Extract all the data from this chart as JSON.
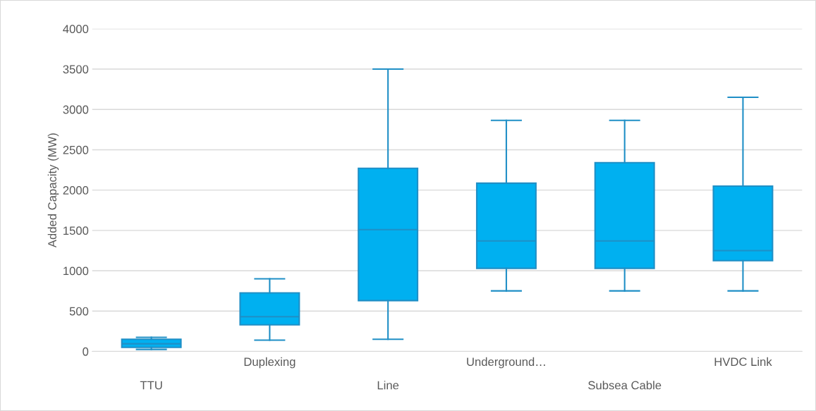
{
  "chart_data": {
    "type": "box",
    "ylabel": "Added Capacity (MW)",
    "categories": [
      "TTU",
      "Duplexing",
      "Line",
      "Underground…",
      "Subsea Cable",
      "HVDC Link"
    ],
    "color": "#00b0f0",
    "ylim": [
      0,
      4000
    ],
    "yticks": [
      0,
      500,
      1000,
      1500,
      2000,
      2500,
      3000,
      3500,
      4000
    ],
    "grid": "y",
    "boxes": [
      {
        "low": 25,
        "q1": 50,
        "median": 95,
        "q3": 150,
        "high": 175
      },
      {
        "low": 140,
        "q1": 330,
        "median": 430,
        "q3": 725,
        "high": 900
      },
      {
        "low": 150,
        "q1": 630,
        "median": 1510,
        "q3": 2270,
        "high": 3500
      },
      {
        "low": 750,
        "q1": 1030,
        "median": 1370,
        "q3": 2085,
        "high": 2865
      },
      {
        "low": 750,
        "q1": 1030,
        "median": 1370,
        "q3": 2340,
        "high": 2865
      },
      {
        "low": 750,
        "q1": 1125,
        "median": 1250,
        "q3": 2050,
        "high": 3150
      }
    ]
  }
}
